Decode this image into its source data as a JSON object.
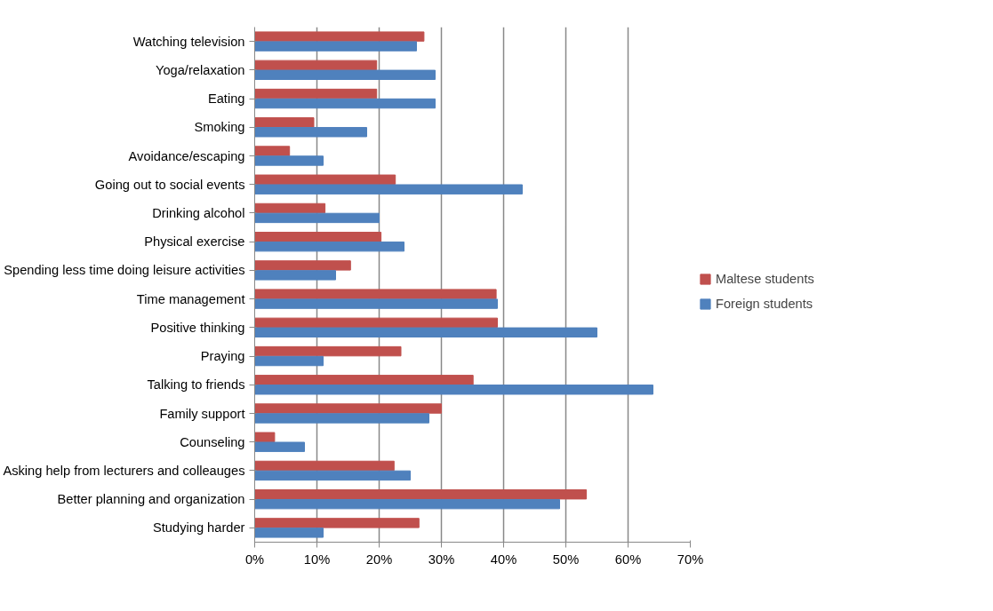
{
  "chart_data": {
    "type": "bar",
    "orientation": "horizontal",
    "categories": [
      "Watching television",
      "Yoga/relaxation",
      "Eating",
      "Smoking",
      "Avoidance/escaping",
      "Going out to social events",
      "Drinking alcohol",
      "Physical exercise",
      "Spending less time doing leisure activities",
      "Time management",
      "Positive thinking",
      "Praying",
      "Talking to friends",
      "Family support",
      "Counseling",
      "Asking help from lecturers and colleauges",
      "Better planning and organization",
      "Studying harder"
    ],
    "series": [
      {
        "name": "Maltese students",
        "color": "#c0504d",
        "values": [
          27.2,
          19.6,
          19.6,
          9.5,
          5.6,
          22.6,
          11.3,
          20.3,
          15.4,
          38.8,
          39.0,
          23.5,
          35.1,
          30.0,
          3.2,
          22.4,
          53.3,
          26.4
        ]
      },
      {
        "name": "Foreign students",
        "color": "#4f81bd",
        "values": [
          26,
          29,
          29,
          18,
          11,
          43,
          20,
          24,
          13,
          39,
          55,
          11,
          64,
          28,
          8,
          25,
          49,
          11
        ]
      }
    ],
    "xlim": [
      0,
      70
    ],
    "xticks": [
      {
        "value": 0,
        "label": "0%"
      },
      {
        "value": 10,
        "label": "10%"
      },
      {
        "value": 20,
        "label": "20%"
      },
      {
        "value": 30,
        "label": "30%"
      },
      {
        "value": 40,
        "label": "40%"
      },
      {
        "value": 50,
        "label": "50%"
      },
      {
        "value": 60,
        "label": "60%"
      },
      {
        "value": 70,
        "label": "70%"
      }
    ],
    "grid": "x",
    "legend": "right"
  }
}
